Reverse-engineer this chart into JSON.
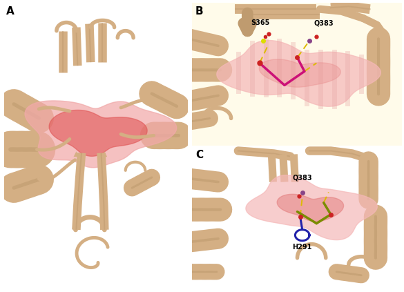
{
  "figsize": [
    5.85,
    4.23
  ],
  "dpi": 100,
  "background_color": "#ffffff",
  "panel_label_fontsize": 11,
  "panel_label_fontweight": "bold",
  "wheat": "#D4AF84",
  "wheat_edge": "#BF9B6F",
  "wheat_dark": "#C09060",
  "cavity_pink": "#F2AAAA",
  "cavity_pink2": "#EE9999",
  "cavity_red": "#E05555",
  "cavity_red2": "#CC4444",
  "label_s365": "S365",
  "label_q383_b": "Q383",
  "label_q383_c": "Q383",
  "label_h291": "H291",
  "annotation_fontsize": 7,
  "magenta": "#CC1177",
  "olive": "#7A8C00",
  "blue_ring": "#2222AA",
  "yellow_dash": "#DDBB00",
  "red_atom": "#CC2222"
}
